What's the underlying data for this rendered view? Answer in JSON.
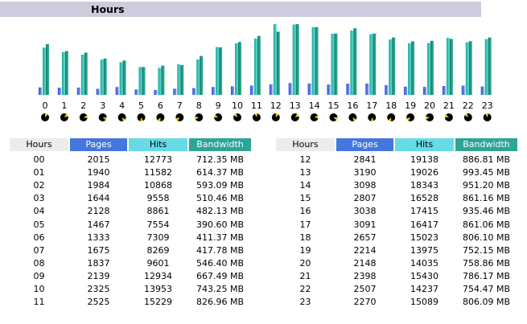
{
  "title": "Hours",
  "colors": {
    "pages": "#3366dd",
    "hits": "#22b8b0",
    "bandwidth": "#1b8f7a",
    "title_bg": "#ccccdd"
  },
  "table": {
    "headers": [
      "Hours",
      "Pages",
      "Hits",
      "Bandwidth"
    ],
    "rows": [
      [
        "00",
        "2015",
        "12773",
        "712.35 MB"
      ],
      [
        "01",
        "1940",
        "11582",
        "614.37 MB"
      ],
      [
        "02",
        "1984",
        "10868",
        "593.09 MB"
      ],
      [
        "03",
        "1644",
        "9558",
        "510.46 MB"
      ],
      [
        "04",
        "2128",
        "8861",
        "482.13 MB"
      ],
      [
        "05",
        "1467",
        "7554",
        "390.60 MB"
      ],
      [
        "06",
        "1333",
        "7309",
        "411.37 MB"
      ],
      [
        "07",
        "1675",
        "8269",
        "417.78 MB"
      ],
      [
        "08",
        "1837",
        "9601",
        "546.40 MB"
      ],
      [
        "09",
        "2139",
        "12934",
        "667.49 MB"
      ],
      [
        "10",
        "2325",
        "13953",
        "743.25 MB"
      ],
      [
        "11",
        "2525",
        "15229",
        "826.96 MB"
      ],
      [
        "12",
        "2841",
        "19138",
        "886.81 MB"
      ],
      [
        "13",
        "3190",
        "19026",
        "993.45 MB"
      ],
      [
        "14",
        "3098",
        "18343",
        "951.20 MB"
      ],
      [
        "15",
        "2807",
        "16528",
        "861.16 MB"
      ],
      [
        "16",
        "3038",
        "17415",
        "935.46 MB"
      ],
      [
        "17",
        "3091",
        "16417",
        "861.06 MB"
      ],
      [
        "18",
        "2657",
        "15023",
        "806.10 MB"
      ],
      [
        "19",
        "2214",
        "13975",
        "752.15 MB"
      ],
      [
        "20",
        "2148",
        "14035",
        "758.86 MB"
      ],
      [
        "21",
        "2398",
        "15430",
        "786.17 MB"
      ],
      [
        "22",
        "2507",
        "14237",
        "754.47 MB"
      ],
      [
        "23",
        "2270",
        "15089",
        "806.09 MB"
      ]
    ]
  },
  "chart_data": {
    "type": "bar",
    "categories": [
      "0",
      "1",
      "2",
      "3",
      "4",
      "5",
      "6",
      "7",
      "8",
      "9",
      "10",
      "11",
      "12",
      "13",
      "14",
      "15",
      "16",
      "17",
      "18",
      "19",
      "20",
      "21",
      "22",
      "23"
    ],
    "series": [
      {
        "name": "Pages",
        "values": [
          2015,
          1940,
          1984,
          1644,
          2128,
          1467,
          1333,
          1675,
          1837,
          2139,
          2325,
          2525,
          2841,
          3190,
          3098,
          2807,
          3038,
          3091,
          2657,
          2214,
          2148,
          2398,
          2507,
          2270
        ]
      },
      {
        "name": "Hits",
        "values": [
          12773,
          11582,
          10868,
          9558,
          8861,
          7554,
          7309,
          8269,
          9601,
          12934,
          13953,
          15229,
          19138,
          19026,
          18343,
          16528,
          17415,
          16417,
          15023,
          13975,
          14035,
          15430,
          14237,
          15089
        ]
      },
      {
        "name": "Bandwidth",
        "values": [
          712.35,
          614.37,
          593.09,
          510.46,
          482.13,
          390.6,
          411.37,
          417.78,
          546.4,
          667.49,
          743.25,
          826.96,
          886.81,
          993.45,
          951.2,
          861.16,
          935.46,
          861.06,
          806.1,
          752.15,
          758.86,
          786.17,
          754.47,
          806.09
        ]
      }
    ],
    "title": "Hours",
    "xlabel": "",
    "ylabel": "",
    "grid": false,
    "legend": "none",
    "clock_icons": true
  }
}
